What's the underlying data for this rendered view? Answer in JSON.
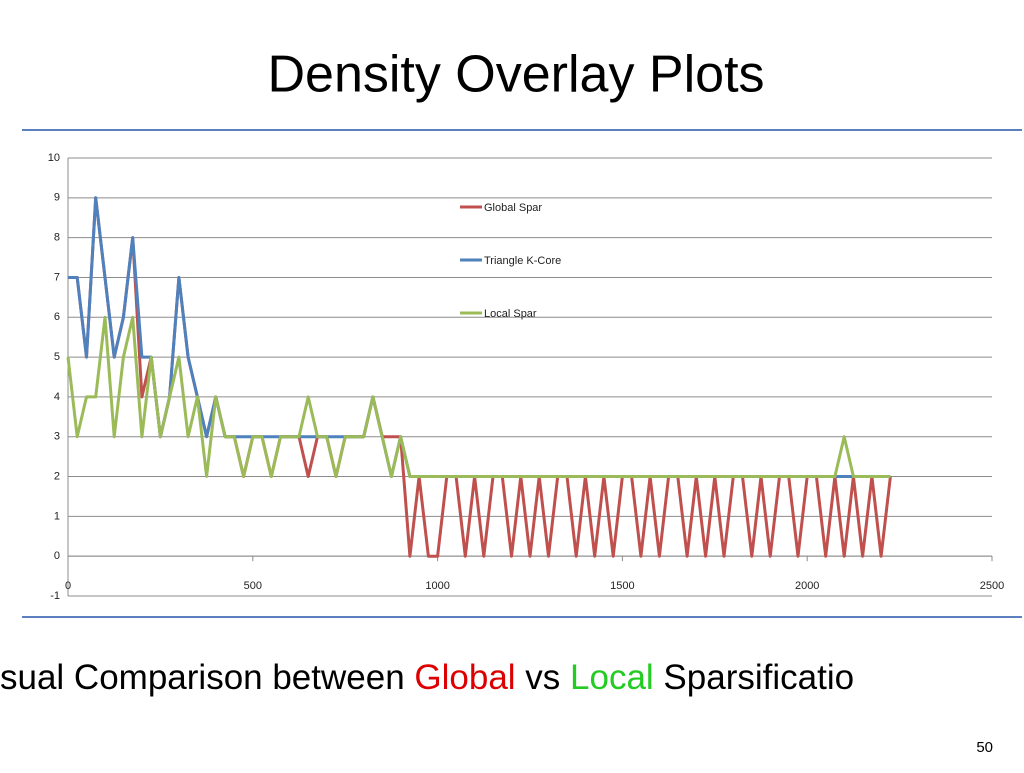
{
  "header": {
    "title": "Density Overlay Plots"
  },
  "chart_data": {
    "type": "line",
    "x": [
      0,
      25,
      50,
      75,
      100,
      125,
      150,
      175,
      200,
      225,
      250,
      275,
      300,
      325,
      350,
      375,
      400,
      425,
      450,
      475,
      500,
      525,
      550,
      575,
      600,
      625,
      650,
      675,
      700,
      725,
      750,
      775,
      800,
      825,
      850,
      875,
      900,
      925,
      950,
      975,
      1000,
      1025,
      1050,
      1075,
      1100,
      1125,
      1150,
      1175,
      1200,
      1225,
      1250,
      1275,
      1300,
      1325,
      1350,
      1375,
      1400,
      1425,
      1450,
      1475,
      1500,
      1525,
      1550,
      1575,
      1600,
      1625,
      1650,
      1675,
      1700,
      1725,
      1750,
      1775,
      1800,
      1825,
      1850,
      1875,
      1900,
      1925,
      1950,
      1975,
      2000,
      2025,
      2050,
      2075,
      2100,
      2125,
      2150,
      2175,
      2200,
      2225
    ],
    "series": [
      {
        "name": "Global Spar",
        "color": "#c0504d",
        "values": [
          7,
          7,
          5,
          9,
          7,
          5,
          6,
          8,
          4,
          5,
          3,
          4,
          7,
          5,
          4,
          3,
          4,
          3,
          3,
          2,
          3,
          3,
          2,
          3,
          3,
          3,
          2,
          3,
          3,
          2,
          3,
          3,
          3,
          4,
          3,
          3,
          3,
          0,
          2,
          0,
          0,
          2,
          2,
          0,
          2,
          0,
          2,
          2,
          0,
          2,
          0,
          2,
          0,
          2,
          2,
          0,
          2,
          0,
          2,
          0,
          2,
          2,
          0,
          2,
          0,
          2,
          2,
          0,
          2,
          0,
          2,
          0,
          2,
          2,
          0,
          2,
          0,
          2,
          2,
          0,
          2,
          2,
          0,
          2,
          0,
          2,
          0,
          2,
          0,
          2
        ]
      },
      {
        "name": "Triangle K-Core",
        "color": "#4f81bd",
        "values": [
          7,
          7,
          5,
          9,
          7,
          5,
          6,
          8,
          5,
          5,
          3,
          4,
          7,
          5,
          4,
          3,
          4,
          3,
          3,
          3,
          3,
          3,
          3,
          3,
          3,
          3,
          3,
          3,
          3,
          3,
          3,
          3,
          3,
          4,
          3,
          2,
          3,
          2,
          2,
          2,
          2,
          2,
          2,
          2,
          2,
          2,
          2,
          2,
          2,
          2,
          2,
          2,
          2,
          2,
          2,
          2,
          2,
          2,
          2,
          2,
          2,
          2,
          2,
          2,
          2,
          2,
          2,
          2,
          2,
          2,
          2,
          2,
          2,
          2,
          2,
          2,
          2,
          2,
          2,
          2,
          2,
          2,
          2,
          2,
          2,
          2,
          2,
          2,
          2,
          2
        ]
      },
      {
        "name": "Local Spar",
        "color": "#9bbb59",
        "values": [
          5,
          3,
          4,
          4,
          6,
          3,
          5,
          6,
          3,
          5,
          3,
          4,
          5,
          3,
          4,
          2,
          4,
          3,
          3,
          2,
          3,
          3,
          2,
          3,
          3,
          3,
          4,
          3,
          3,
          2,
          3,
          3,
          3,
          4,
          3,
          2,
          3,
          2,
          2,
          2,
          2,
          2,
          2,
          2,
          2,
          2,
          2,
          2,
          2,
          2,
          2,
          2,
          2,
          2,
          2,
          2,
          2,
          2,
          2,
          2,
          2,
          2,
          2,
          2,
          2,
          2,
          2,
          2,
          2,
          2,
          2,
          2,
          2,
          2,
          2,
          2,
          2,
          2,
          2,
          2,
          2,
          2,
          2,
          2,
          3,
          2,
          2,
          2,
          2,
          2
        ]
      }
    ],
    "xlim": [
      0,
      2500
    ],
    "xticks": [
      0,
      500,
      1000,
      1500,
      2000,
      2500
    ],
    "ylim": [
      -1,
      10
    ],
    "yticks": [
      -1,
      0,
      1,
      2,
      3,
      4,
      5,
      6,
      7,
      8,
      9,
      10
    ],
    "grid": true
  },
  "caption": {
    "parts": [
      "sual Comparison between ",
      "Global",
      " vs ",
      "Local",
      " Sparsificatio"
    ]
  },
  "page_number": 50
}
